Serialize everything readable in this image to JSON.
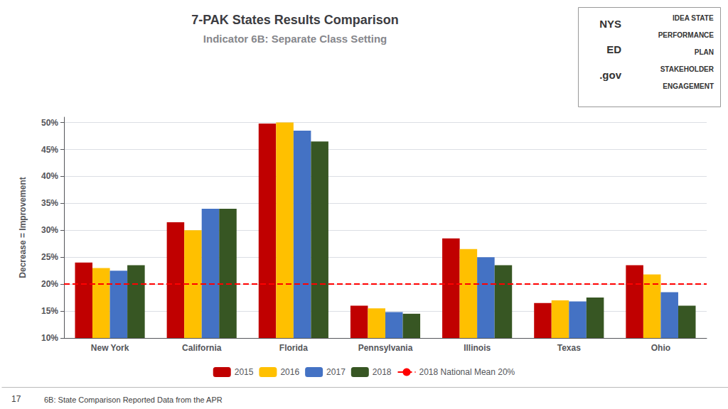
{
  "chart_data": {
    "type": "bar",
    "title": "7-PAK States Results Comparison",
    "subtitle": "Indicator 6B: Separate Class Setting",
    "ylabel": "Decrease = Improvement",
    "categories": [
      "New York",
      "California",
      "Florida",
      "Pennsylvania",
      "Illinois",
      "Texas",
      "Ohio"
    ],
    "series": [
      {
        "name": "2015",
        "color": "#C00000",
        "values": [
          0.24,
          0.315,
          0.498,
          0.16,
          0.285,
          0.165,
          0.235
        ]
      },
      {
        "name": "2016",
        "color": "#FFC000",
        "values": [
          0.23,
          0.3,
          0.5,
          0.155,
          0.265,
          0.17,
          0.218
        ]
      },
      {
        "name": "2017",
        "color": "#4472C4",
        "values": [
          0.225,
          0.34,
          0.485,
          0.148,
          0.25,
          0.168,
          0.185
        ]
      },
      {
        "name": "2018",
        "color": "#375623",
        "values": [
          0.235,
          0.34,
          0.465,
          0.145,
          0.235,
          0.175,
          0.16
        ]
      }
    ],
    "mean_line": {
      "name": "2018 National Mean 20%",
      "value": 0.2,
      "color": "red",
      "line_style": "dashed"
    },
    "ylim": [
      0.1,
      0.51
    ],
    "yticks": [
      {
        "value": 0.1,
        "label": "10%"
      },
      {
        "value": 0.15,
        "label": "15%"
      },
      {
        "value": 0.2,
        "label": "20%"
      },
      {
        "value": 0.25,
        "label": "25%"
      },
      {
        "value": 0.3,
        "label": "30%"
      },
      {
        "value": 0.35,
        "label": "35%"
      },
      {
        "value": 0.4,
        "label": "40%"
      },
      {
        "value": 0.45,
        "label": "45%"
      },
      {
        "value": 0.5,
        "label": "50%"
      }
    ],
    "grid": true,
    "legend": "bottom",
    "annotations": [
      "17",
      "6B: State Comparison Reported Data from the APR",
      "NYS",
      "ED",
      ".gov",
      "IDEA STATE",
      "PERFORMANCE",
      "PLAN",
      "STAKEHOLDER",
      "ENGAGEMENT"
    ]
  }
}
